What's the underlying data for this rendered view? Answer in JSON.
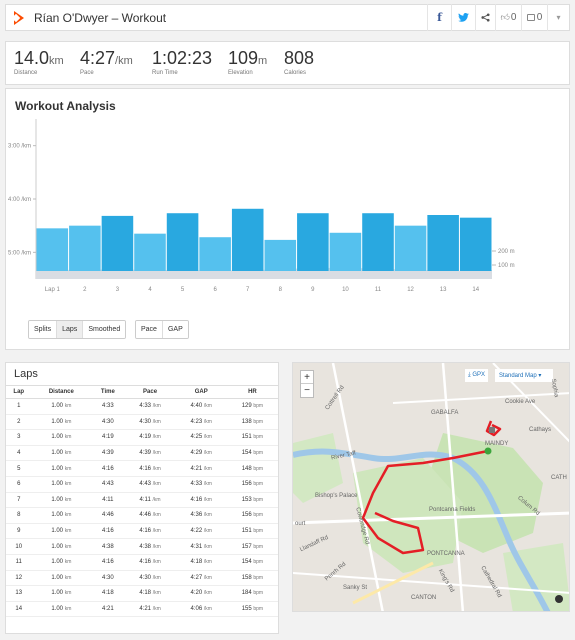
{
  "header": {
    "title": "Rían O'Dwyer – Workout",
    "facebook": "f",
    "twitter": "🐦",
    "share": "<",
    "kudos": "0",
    "comments": "0",
    "more": "▾",
    "brand_color": "#fc4c02"
  },
  "stats": [
    {
      "value": "14.0",
      "unit": "km",
      "label": "Distance"
    },
    {
      "value": "4:27",
      "unit": "/km",
      "label": "Pace"
    },
    {
      "value": "1:02:23",
      "unit": "",
      "label": "Run Time"
    },
    {
      "value": "109",
      "unit": "m",
      "label": "Elevation"
    },
    {
      "value": "808",
      "unit": "",
      "label": "Calories"
    }
  ],
  "analysis": {
    "title": "Workout Analysis",
    "split_buttons": [
      "Splits",
      "Laps",
      "Smoothed"
    ],
    "metric_buttons": [
      "Pace",
      "GAP"
    ],
    "active_split": "Laps"
  },
  "chart_data": {
    "type": "bar",
    "categories": [
      "Lap 1",
      "2",
      "3",
      "4",
      "5",
      "6",
      "7",
      "8",
      "9",
      "10",
      "11",
      "12",
      "13",
      "14"
    ],
    "y_tick_labels": [
      "3:00 /km",
      "4:00 /km",
      "5:00 /km"
    ],
    "y_tick_values": [
      180,
      240,
      300
    ],
    "elevation_labels": [
      "200 m",
      "100 m"
    ],
    "values_seconds_per_km": [
      273,
      270,
      259,
      279,
      256,
      283,
      251,
      286,
      256,
      278,
      256,
      270,
      258,
      261
    ],
    "highlight_color": "#29a8e0",
    "bar_color": "#55c1ee"
  },
  "laps": {
    "title": "Laps",
    "columns": [
      "Lap",
      "Distance",
      "Time",
      "Pace",
      "GAP",
      "HR"
    ],
    "rows": [
      [
        "1",
        "1.00",
        "4:33",
        "4:33",
        "4:40",
        "129"
      ],
      [
        "2",
        "1.00",
        "4:30",
        "4:30",
        "4:23",
        "138"
      ],
      [
        "3",
        "1.00",
        "4:19",
        "4:19",
        "4:25",
        "151"
      ],
      [
        "4",
        "1.00",
        "4:39",
        "4:39",
        "4:29",
        "154"
      ],
      [
        "5",
        "1.00",
        "4:16",
        "4:16",
        "4:21",
        "148"
      ],
      [
        "6",
        "1.00",
        "4:43",
        "4:43",
        "4:33",
        "156"
      ],
      [
        "7",
        "1.00",
        "4:11",
        "4:11",
        "4:16",
        "153"
      ],
      [
        "8",
        "1.00",
        "4:46",
        "4:46",
        "4:36",
        "156"
      ],
      [
        "9",
        "1.00",
        "4:16",
        "4:16",
        "4:22",
        "151"
      ],
      [
        "10",
        "1.00",
        "4:38",
        "4:38",
        "4:31",
        "157"
      ],
      [
        "11",
        "1.00",
        "4:16",
        "4:16",
        "4:18",
        "154"
      ],
      [
        "12",
        "1.00",
        "4:30",
        "4:30",
        "4:27",
        "158"
      ],
      [
        "13",
        "1.00",
        "4:18",
        "4:18",
        "4:20",
        "184"
      ],
      [
        "14",
        "1.00",
        "4:21",
        "4:21",
        "4:06",
        "155"
      ]
    ],
    "units": {
      "distance": "km",
      "pace": "/km",
      "gap": "/km",
      "hr": "bpm"
    }
  },
  "map": {
    "zoom_in": "+",
    "zoom_out": "−",
    "gpx_label": "GPX",
    "map_type": "Standard Map",
    "labels": [
      "Cottrell Rd",
      "GABALFA",
      "Cathays",
      "MAINDY",
      "River Taff",
      "Bishop's Palace",
      "Pontcanna Fields",
      "PONTCANNA",
      "CANTON",
      "CATH",
      "Colum Rd",
      "Cathedral Rd",
      "ourt",
      "Cowbridge Rd",
      "Llandaff Rd",
      "King's Rd",
      "Sanky St",
      "Penrh Rd",
      "Cookie Ave",
      "Sophia"
    ],
    "route_color": "#e41e26"
  }
}
